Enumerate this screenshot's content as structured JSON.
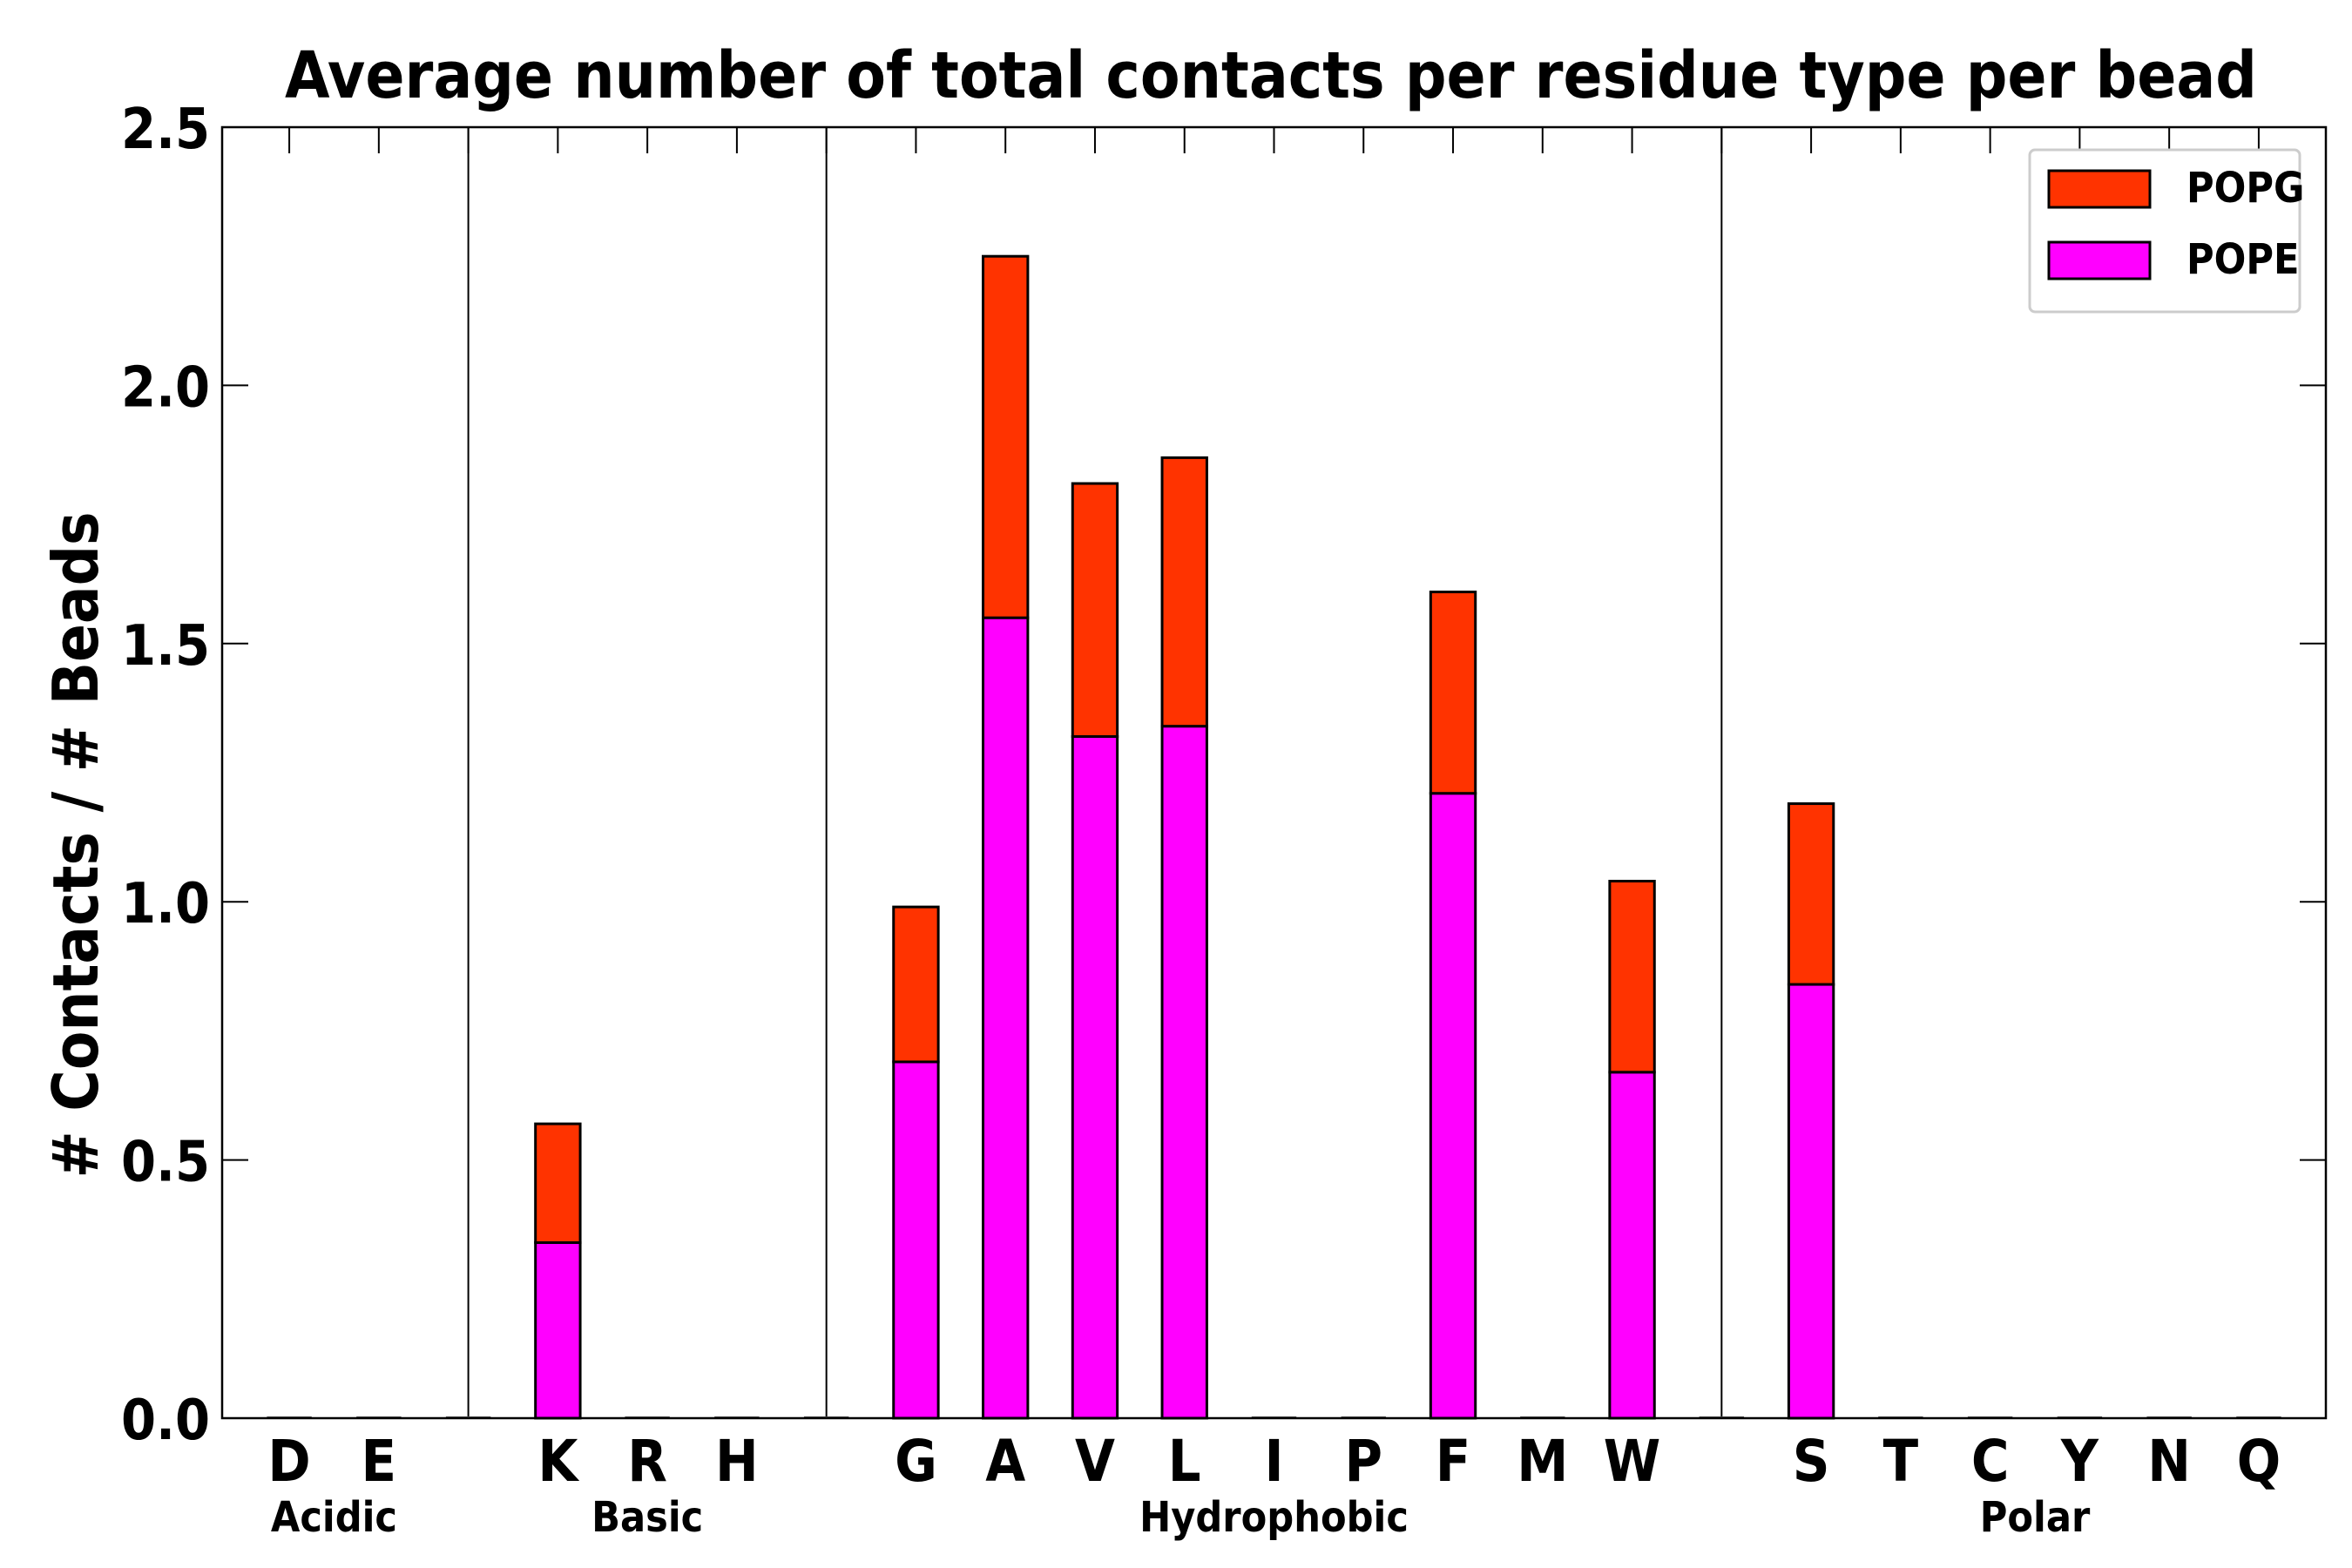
{
  "chart_data": {
    "type": "bar",
    "stacked": true,
    "title": "Average number of total contacts per residue type per bead",
    "xlabel": "",
    "ylabel": "# Contacts / # Beads",
    "ylim": [
      0,
      2.5
    ],
    "yticks": [
      "0.0",
      "0.5",
      "1.0",
      "1.5",
      "2.0",
      "2.5"
    ],
    "ytick_values": [
      0,
      0.5,
      1.0,
      1.5,
      2.0,
      2.5
    ],
    "slots": [
      "D",
      "E",
      "",
      "K",
      "R",
      "H",
      "",
      "G",
      "A",
      "V",
      "L",
      "I",
      "P",
      "F",
      "M",
      "W",
      "",
      "S",
      "T",
      "C",
      "Y",
      "N",
      "Q"
    ],
    "groups": [
      {
        "name": "Acidic",
        "first": 0,
        "last": 1
      },
      {
        "name": "Basic",
        "first": 3,
        "last": 5
      },
      {
        "name": "Hydrophobic",
        "first": 7,
        "last": 15
      },
      {
        "name": "Polar",
        "first": 17,
        "last": 22
      }
    ],
    "separators": [
      2,
      6,
      16
    ],
    "series": [
      {
        "name": "POPE",
        "color": "#ff00ff",
        "values": [
          0,
          0,
          0,
          0.34,
          0,
          0,
          0,
          0.69,
          1.55,
          1.32,
          1.34,
          0,
          0,
          1.21,
          0,
          0.67,
          0,
          0.84,
          0,
          0,
          0,
          0,
          0
        ]
      },
      {
        "name": "POPG",
        "color": "#ff3300",
        "values": [
          0,
          0,
          0,
          0.23,
          0,
          0,
          0,
          0.3,
          0.7,
          0.49,
          0.52,
          0,
          0,
          0.39,
          0,
          0.37,
          0,
          0.35,
          0,
          0,
          0,
          0,
          0
        ]
      }
    ],
    "legend": {
      "position": "top-right",
      "entries": [
        "POPG",
        "POPE"
      ]
    }
  }
}
